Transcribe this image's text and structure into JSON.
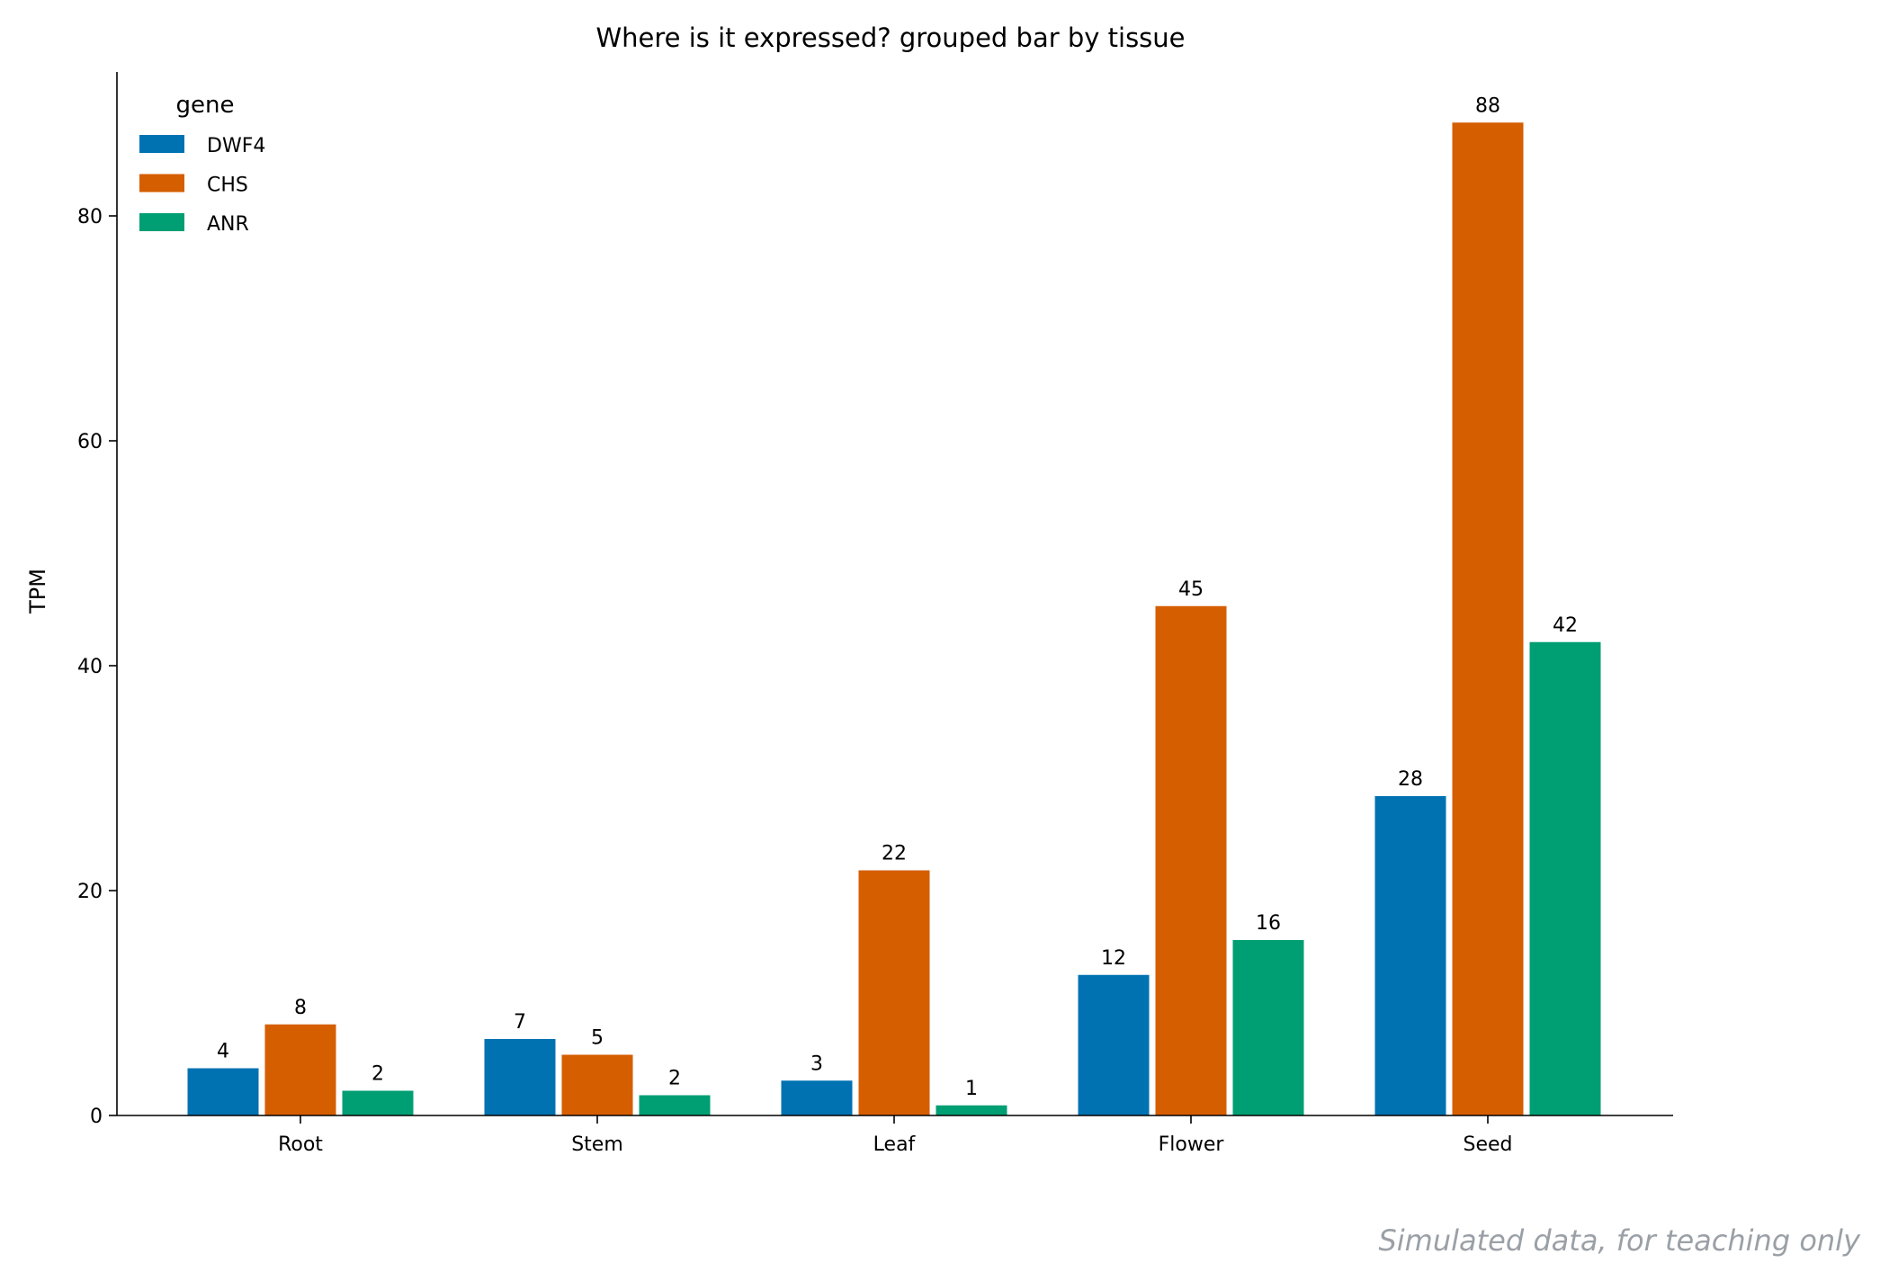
{
  "chart_data": {
    "type": "bar",
    "title": "Where is it expressed? grouped bar by tissue",
    "xlabel": "",
    "ylabel": "TPM",
    "categories": [
      "Root",
      "Stem",
      "Leaf",
      "Flower",
      "Seed"
    ],
    "ylim": [
      0,
      92.8
    ],
    "yticks": [
      0,
      20,
      40,
      60,
      80
    ],
    "grid": false,
    "legend": {
      "title": "gene",
      "placement": "top-left"
    },
    "series": [
      {
        "name": "DWF4",
        "color": "#0072b2",
        "values": [
          4.2,
          6.8,
          3.1,
          12.5,
          28.4
        ],
        "labels": [
          "4",
          "7",
          "3",
          "12",
          "28"
        ]
      },
      {
        "name": "CHS",
        "color": "#d55e00",
        "values": [
          8.1,
          5.4,
          21.8,
          45.3,
          88.3
        ],
        "labels": [
          "8",
          "5",
          "22",
          "45",
          "88"
        ]
      },
      {
        "name": "ANR",
        "color": "#009e73",
        "values": [
          2.2,
          1.8,
          0.9,
          15.6,
          42.1
        ],
        "labels": [
          "2",
          "2",
          "1",
          "16",
          "42"
        ]
      }
    ]
  },
  "footer": {
    "note": "Simulated data, for teaching only"
  }
}
